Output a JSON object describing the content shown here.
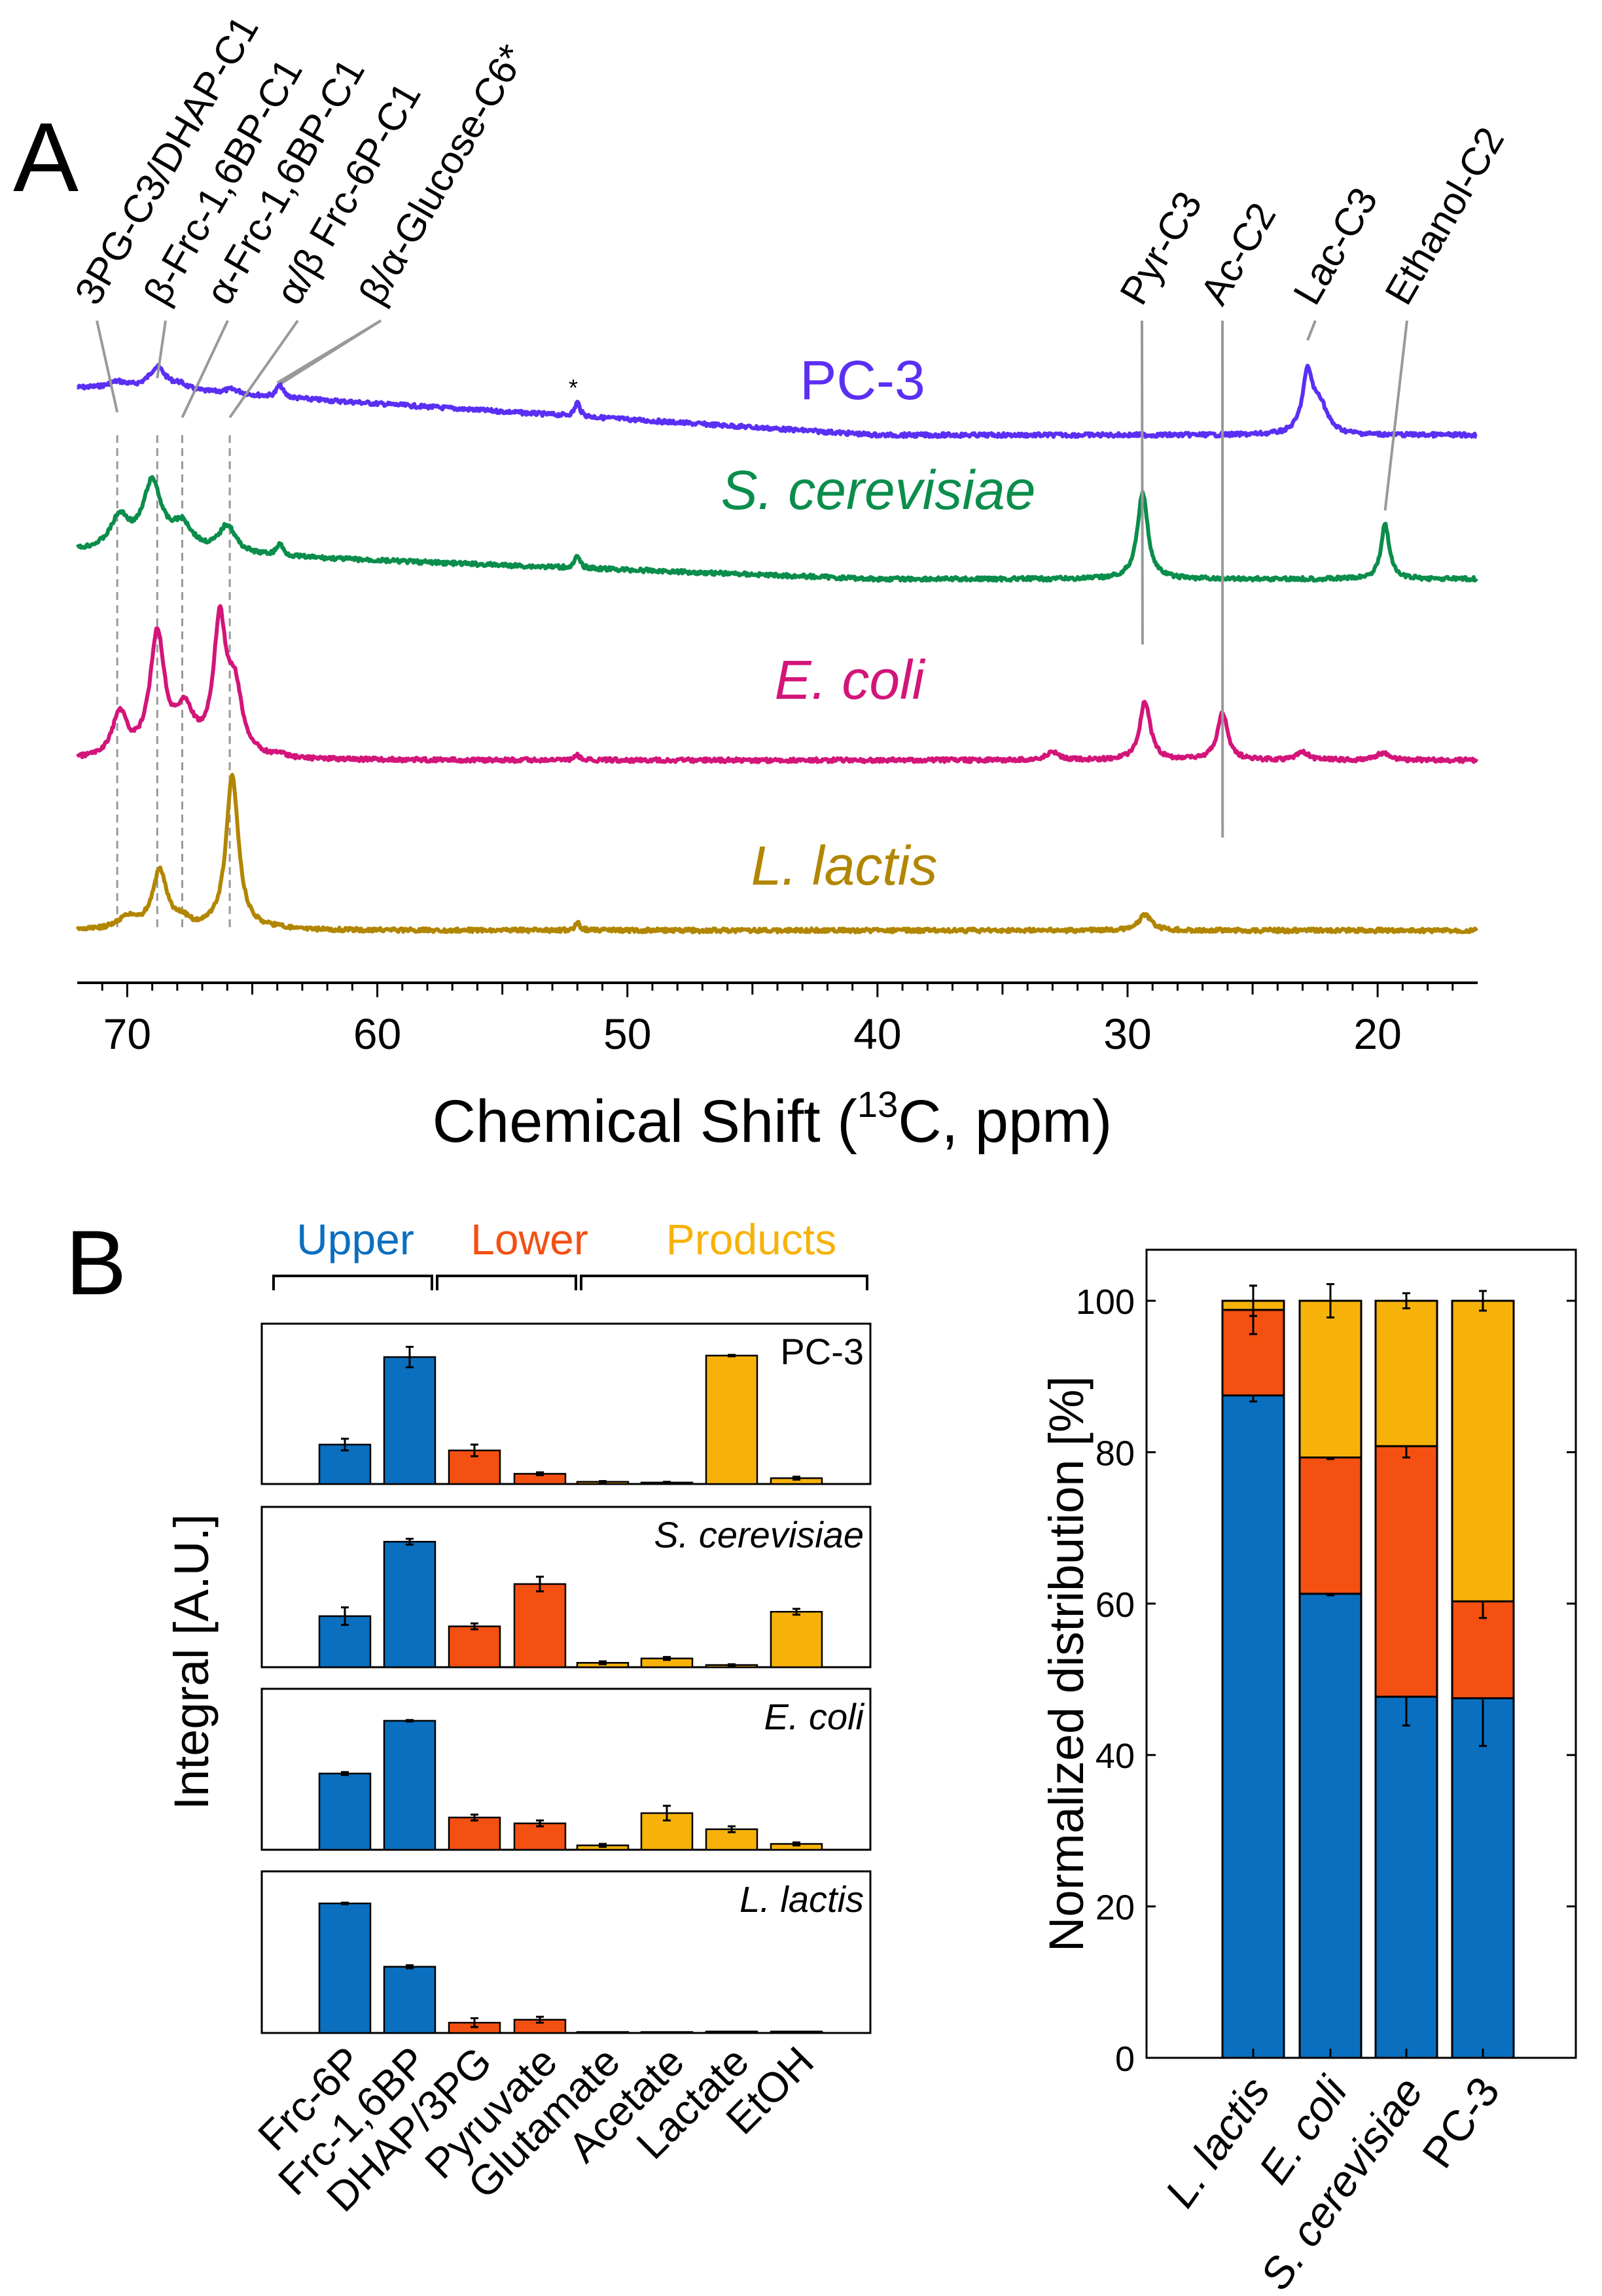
{
  "panel_a": {
    "label": "A",
    "xlabel_main": "Chemical Shift (",
    "xlabel_sup": "13",
    "xlabel_tail": "C, ppm)",
    "chart_data": {
      "type": "line",
      "xlim": [
        72,
        16
      ],
      "x_ticks": [
        70,
        60,
        50,
        40,
        30,
        20
      ],
      "series": [
        {
          "name": "PC-3",
          "italic": false,
          "color": "#5b2ff3",
          "baseline": 0.6,
          "peaks": [
            [
              70.4,
              0.07,
              0.4
            ],
            [
              68.8,
              0.28,
              0.4
            ],
            [
              67.9,
              0.07,
              0.4
            ],
            [
              65.8,
              0.06,
              0.4
            ],
            [
              63.9,
              0.16,
              0.15
            ],
            [
              52.0,
              0.18,
              0.12
            ],
            [
              22.8,
              0.75,
              0.25
            ],
            [
              22.3,
              0.35,
              0.35
            ]
          ]
        },
        {
          "name": "S. cerevisiae",
          "italic": true,
          "color": "#0b8d4b",
          "baseline": 0.35,
          "peaks": [
            [
              70.3,
              0.4,
              0.45
            ],
            [
              69.0,
              0.85,
              0.45
            ],
            [
              67.8,
              0.32,
              0.5
            ],
            [
              66.0,
              0.35,
              0.4
            ],
            [
              63.9,
              0.15,
              0.15
            ],
            [
              52.0,
              0.15,
              0.12
            ],
            [
              29.4,
              1.1,
              0.25
            ],
            [
              19.7,
              0.7,
              0.2
            ]
          ]
        },
        {
          "name": "E. coli",
          "italic": true,
          "color": "#d3157a",
          "baseline": 0.0,
          "peaks": [
            [
              70.3,
              0.55,
              0.35
            ],
            [
              68.8,
              1.55,
              0.35
            ],
            [
              67.7,
              0.55,
              0.45
            ],
            [
              66.3,
              1.65,
              0.3
            ],
            [
              65.7,
              0.8,
              0.35
            ],
            [
              63.9,
              0.05,
              0.15
            ],
            [
              52.0,
              0.06,
              0.12
            ],
            [
              33.0,
              0.1,
              0.3
            ],
            [
              29.3,
              0.75,
              0.25
            ],
            [
              26.2,
              0.6,
              0.25
            ],
            [
              23.0,
              0.1,
              0.3
            ],
            [
              19.8,
              0.09,
              0.3
            ]
          ]
        },
        {
          "name": "L. lactis",
          "italic": true,
          "color": "#b18600",
          "baseline": 0.0,
          "peaks": [
            [
              70.0,
              0.14,
              0.45
            ],
            [
              68.7,
              0.75,
              0.35
            ],
            [
              67.8,
              0.1,
              0.3
            ],
            [
              65.8,
              1.95,
              0.3
            ],
            [
              63.9,
              0.04,
              0.15
            ],
            [
              52.0,
              0.1,
              0.12
            ],
            [
              29.3,
              0.2,
              0.3
            ]
          ]
        }
      ],
      "peak_labels": [
        {
          "text": "3PG-C3/DHAP-C1",
          "ppm": 70.4
        },
        {
          "text": "β-Frc-1,6BP-C1",
          "ppm": 68.8
        },
        {
          "text": "α-Frc-1,6BP-C1",
          "ppm": 67.8
        },
        {
          "text": "α/β Frc-6P-C1",
          "ppm": 65.9
        },
        {
          "text": "β/α-Glucose-C6*",
          "ppm": 64.0
        },
        {
          "text": "Pyr-C3",
          "ppm": 29.4
        },
        {
          "text": "Ac-C2",
          "ppm": 26.2
        },
        {
          "text": "Lac-C3",
          "ppm": 22.8
        },
        {
          "text": "Ethanol-C2",
          "ppm": 19.7
        }
      ],
      "asterisk": "*"
    }
  },
  "panel_b": {
    "label": "B",
    "group_labels": [
      {
        "text": "Upper",
        "color": "#0a6fbf"
      },
      {
        "text": "Lower",
        "color": "#f35012"
      },
      {
        "text": "Products",
        "color": "#f7b20a"
      }
    ],
    "ylabel": "Integral [A.U.]",
    "chart_data": {
      "type": "bar",
      "categories": [
        "Frc-6P",
        "Frc-1,6BP",
        "DHAP/3PG",
        "Pyruvate",
        "Glutamate",
        "Acetate",
        "Lactate",
        "EtOH"
      ],
      "category_groups": [
        "upper",
        "upper",
        "lower",
        "lower",
        "products",
        "products",
        "products",
        "products"
      ],
      "colors": {
        "upper": "#0a6fbf",
        "lower": "#f35012",
        "products": "#f7b20a"
      },
      "ylim": [
        0,
        1
      ],
      "series": [
        {
          "name": "PC-3",
          "italic": false,
          "values": [
            0.27,
            0.87,
            0.23,
            0.07,
            0.015,
            0.01,
            0.88,
            0.04
          ],
          "errors": [
            0.04,
            0.07,
            0.04,
            0.01,
            0.005,
            0.005,
            0.005,
            0.01
          ]
        },
        {
          "name": "S. cerevisiae",
          "italic": true,
          "values": [
            0.35,
            0.86,
            0.28,
            0.57,
            0.03,
            0.06,
            0.015,
            0.38
          ],
          "errors": [
            0.06,
            0.02,
            0.02,
            0.05,
            0.01,
            0.01,
            0.005,
            0.02
          ]
        },
        {
          "name": "E. coli",
          "italic": true,
          "values": [
            0.52,
            0.88,
            0.22,
            0.18,
            0.03,
            0.25,
            0.14,
            0.04
          ],
          "errors": [
            0.01,
            0.005,
            0.02,
            0.02,
            0.01,
            0.05,
            0.02,
            0.01
          ]
        },
        {
          "name": "L. lactis",
          "italic": true,
          "values": [
            0.88,
            0.45,
            0.07,
            0.09,
            0.005,
            0.005,
            0.01,
            0.01
          ],
          "errors": [
            0.005,
            0.01,
            0.03,
            0.02,
            0.002,
            0.002,
            0.002,
            0.002
          ]
        }
      ]
    }
  },
  "panel_c": {
    "ylabel": "Normalized distribution  [%]",
    "chart_data": {
      "type": "bar",
      "stacked": true,
      "categories": [
        "L. lactis",
        "E. coli",
        "S. cerevisiae",
        "PC-3"
      ],
      "ylim": [
        0,
        105
      ],
      "y_ticks": [
        0,
        20,
        40,
        60,
        80,
        100
      ],
      "series": [
        {
          "name": "Upper",
          "color": "#0a6fbf",
          "values": [
            87.5,
            61.3,
            47.7,
            47.5
          ],
          "errors": [
            0.8,
            0.2,
            3.8,
            6.3
          ]
        },
        {
          "name": "Lower",
          "color": "#f35012",
          "values": [
            11.3,
            18.0,
            33.1,
            12.8
          ],
          "errors": [
            3.2,
            0.2,
            1.5,
            2.2
          ]
        },
        {
          "name": "Products",
          "color": "#f7b20a",
          "values": [
            1.2,
            20.7,
            19.2,
            39.7
          ],
          "errors": [
            2.0,
            2.2,
            1.0,
            1.3
          ]
        }
      ]
    }
  }
}
